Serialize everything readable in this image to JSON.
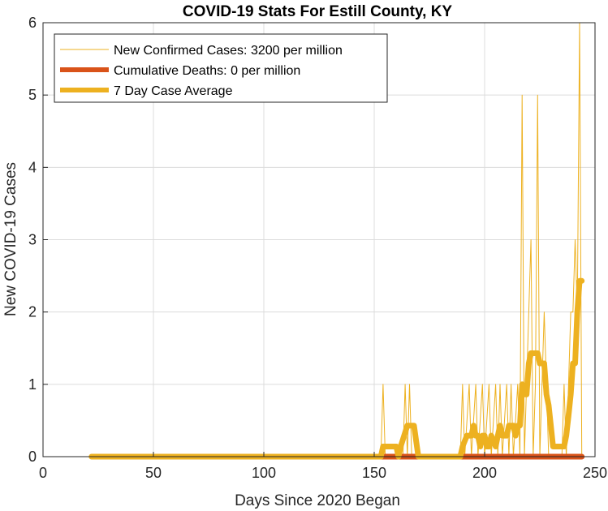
{
  "chart_data": {
    "type": "line",
    "title": "COVID-19 Stats For Estill County, KY",
    "xlabel": "Days Since 2020 Began",
    "ylabel": "New COVID-19 Cases",
    "xlim": [
      0,
      250
    ],
    "ylim": [
      0,
      6
    ],
    "xticks": [
      0,
      50,
      100,
      150,
      200,
      250
    ],
    "yticks": [
      0,
      1,
      2,
      3,
      4,
      5,
      6
    ],
    "grid": true,
    "legend_position": "top-left",
    "series": [
      {
        "name": "New Confirmed Cases: 3200 per million",
        "color": "#EDB120",
        "style": "thin",
        "points": [
          [
            22,
            0
          ],
          [
            153,
            0
          ],
          [
            154,
            1
          ],
          [
            155,
            0
          ],
          [
            163,
            0
          ],
          [
            164,
            1
          ],
          [
            165,
            0
          ],
          [
            166,
            1
          ],
          [
            167,
            0
          ],
          [
            189,
            0
          ],
          [
            190,
            1
          ],
          [
            191,
            0
          ],
          [
            193,
            1
          ],
          [
            194,
            0
          ],
          [
            196,
            1
          ],
          [
            197,
            0
          ],
          [
            199,
            1
          ],
          [
            200,
            0
          ],
          [
            202,
            1
          ],
          [
            203,
            0
          ],
          [
            205,
            1
          ],
          [
            206,
            0
          ],
          [
            207,
            1
          ],
          [
            208,
            0
          ],
          [
            210,
            1
          ],
          [
            211,
            0
          ],
          [
            212,
            1
          ],
          [
            213,
            0
          ],
          [
            215,
            1
          ],
          [
            216,
            0
          ],
          [
            217,
            5
          ],
          [
            218,
            0
          ],
          [
            219,
            1
          ],
          [
            220,
            2
          ],
          [
            221,
            3
          ],
          [
            222,
            0
          ],
          [
            223,
            1
          ],
          [
            224,
            5
          ],
          [
            225,
            0
          ],
          [
            226,
            1
          ],
          [
            227,
            2
          ],
          [
            228,
            1
          ],
          [
            229,
            0
          ],
          [
            234,
            0
          ],
          [
            235,
            0
          ],
          [
            236,
            1
          ],
          [
            237,
            0
          ],
          [
            238,
            1
          ],
          [
            239,
            2
          ],
          [
            240,
            2
          ],
          [
            241,
            3
          ],
          [
            242,
            2
          ],
          [
            243,
            6
          ],
          [
            244,
            0
          ]
        ]
      },
      {
        "name": "Cumulative Deaths: 0 per million",
        "color": "#D95319",
        "style": "thick",
        "points": [
          [
            153,
            0
          ],
          [
            244,
            0
          ]
        ]
      },
      {
        "name": "7 Day Case Average",
        "color": "#EDB120",
        "style": "thick",
        "points": [
          [
            22,
            0
          ],
          [
            153,
            0
          ],
          [
            154,
            0.14
          ],
          [
            160,
            0.14
          ],
          [
            161,
            0
          ],
          [
            162,
            0.14
          ],
          [
            165,
            0.43
          ],
          [
            168,
            0.43
          ],
          [
            170,
            0
          ],
          [
            189,
            0
          ],
          [
            190,
            0.14
          ],
          [
            192,
            0.29
          ],
          [
            194,
            0.29
          ],
          [
            195,
            0.43
          ],
          [
            196,
            0.29
          ],
          [
            197,
            0.29
          ],
          [
            198,
            0.14
          ],
          [
            199,
            0.29
          ],
          [
            200,
            0.29
          ],
          [
            201,
            0.14
          ],
          [
            202,
            0.14
          ],
          [
            203,
            0.29
          ],
          [
            205,
            0.14
          ],
          [
            206,
            0.29
          ],
          [
            207,
            0.43
          ],
          [
            208,
            0.29
          ],
          [
            210,
            0.29
          ],
          [
            211,
            0.43
          ],
          [
            213,
            0.43
          ],
          [
            214,
            0.29
          ],
          [
            215,
            0.43
          ],
          [
            216,
            0.43
          ],
          [
            217,
            1
          ],
          [
            218,
            0.86
          ],
          [
            219,
            0.86
          ],
          [
            220,
            1.29
          ],
          [
            221,
            1.43
          ],
          [
            224,
            1.43
          ],
          [
            225,
            1.29
          ],
          [
            227,
            1.29
          ],
          [
            228,
            0.86
          ],
          [
            229,
            0.71
          ],
          [
            230,
            0.43
          ],
          [
            231,
            0.14
          ],
          [
            236,
            0.14
          ],
          [
            237,
            0.29
          ],
          [
            238,
            0.57
          ],
          [
            239,
            0.86
          ],
          [
            240,
            1.29
          ],
          [
            241,
            1.29
          ],
          [
            242,
            2
          ],
          [
            243,
            2.43
          ],
          [
            244,
            2.43
          ]
        ]
      }
    ]
  }
}
